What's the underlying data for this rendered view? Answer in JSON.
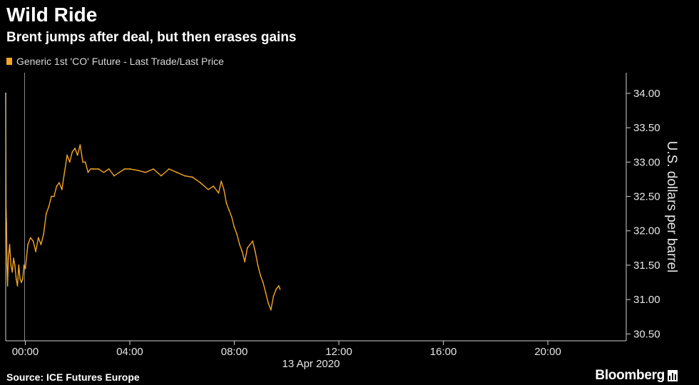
{
  "header": {
    "title": "Wild Ride",
    "subtitle": "Brent jumps after deal, but then erases gains"
  },
  "legend": {
    "label": "Generic 1st 'CO' Future - Last Trade/Last Price",
    "color": "#f5a623"
  },
  "footer": {
    "source": "Source: ICE Futures Europe",
    "brand": "Bloomberg"
  },
  "chart_data": {
    "type": "line",
    "title": "Wild Ride",
    "subtitle": "Brent jumps after deal, but then erases gains",
    "ylabel": "U.S. dollars per barrel",
    "date_label": "13 Apr 2020",
    "ylim": [
      30.4,
      34.3
    ],
    "xlim_hours": [
      -0.75,
      23.0
    ],
    "y_ticks": [
      30.5,
      31.0,
      31.5,
      32.0,
      32.5,
      33.0,
      33.5,
      34.0
    ],
    "y_tick_labels": [
      "30.50",
      "31.00",
      "31.50",
      "32.00",
      "32.50",
      "33.00",
      "33.50",
      "34.00"
    ],
    "x_ticks": [
      0,
      4,
      8,
      12,
      16,
      20
    ],
    "x_tick_labels": [
      "00:00",
      "04:00",
      "08:00",
      "12:00",
      "16:00",
      "20:00"
    ],
    "grid": false,
    "legend_position": "top-left",
    "series": [
      {
        "name": "Generic 1st 'CO' Future - Last Trade/Last Price",
        "color": "#f5a623",
        "x": [
          -0.75,
          -0.74,
          -0.72,
          -0.7,
          -0.68,
          -0.65,
          -0.6,
          -0.55,
          -0.5,
          -0.45,
          -0.4,
          -0.35,
          -0.3,
          -0.25,
          -0.2,
          -0.15,
          -0.1,
          -0.05,
          0.0,
          0.1,
          0.2,
          0.3,
          0.4,
          0.5,
          0.6,
          0.7,
          0.8,
          0.9,
          1.0,
          1.1,
          1.2,
          1.3,
          1.4,
          1.5,
          1.6,
          1.7,
          1.8,
          1.9,
          2.0,
          2.1,
          2.2,
          2.3,
          2.4,
          2.5,
          2.6,
          2.8,
          3.0,
          3.2,
          3.4,
          3.6,
          3.8,
          4.0,
          4.3,
          4.6,
          4.9,
          5.2,
          5.5,
          5.8,
          6.1,
          6.4,
          6.7,
          7.0,
          7.2,
          7.4,
          7.5,
          7.6,
          7.7,
          7.8,
          7.9,
          8.0,
          8.1,
          8.2,
          8.3,
          8.4,
          8.5,
          8.6,
          8.7,
          8.8,
          8.9,
          9.0,
          9.1,
          9.2,
          9.3,
          9.4,
          9.5,
          9.6,
          9.7,
          9.75
        ],
        "y": [
          34.0,
          32.4,
          32.1,
          31.5,
          31.2,
          31.6,
          31.8,
          31.5,
          31.4,
          31.6,
          31.5,
          31.3,
          31.2,
          31.5,
          31.3,
          31.25,
          31.3,
          31.5,
          31.45,
          31.8,
          31.9,
          31.85,
          31.7,
          31.9,
          31.8,
          31.95,
          32.25,
          32.35,
          32.5,
          32.5,
          32.65,
          32.7,
          32.6,
          32.85,
          33.1,
          33.0,
          33.15,
          33.2,
          33.1,
          33.25,
          33.0,
          33.0,
          32.85,
          32.9,
          32.9,
          32.9,
          32.85,
          32.9,
          32.8,
          32.85,
          32.9,
          32.9,
          32.88,
          32.85,
          32.9,
          32.8,
          32.9,
          32.85,
          32.8,
          32.78,
          32.7,
          32.6,
          32.65,
          32.55,
          32.72,
          32.6,
          32.4,
          32.3,
          32.2,
          32.05,
          31.95,
          31.8,
          31.7,
          31.55,
          31.75,
          31.8,
          31.85,
          31.7,
          31.5,
          31.35,
          31.25,
          31.1,
          30.95,
          30.85,
          31.05,
          31.15,
          31.2,
          31.15
        ]
      }
    ]
  }
}
